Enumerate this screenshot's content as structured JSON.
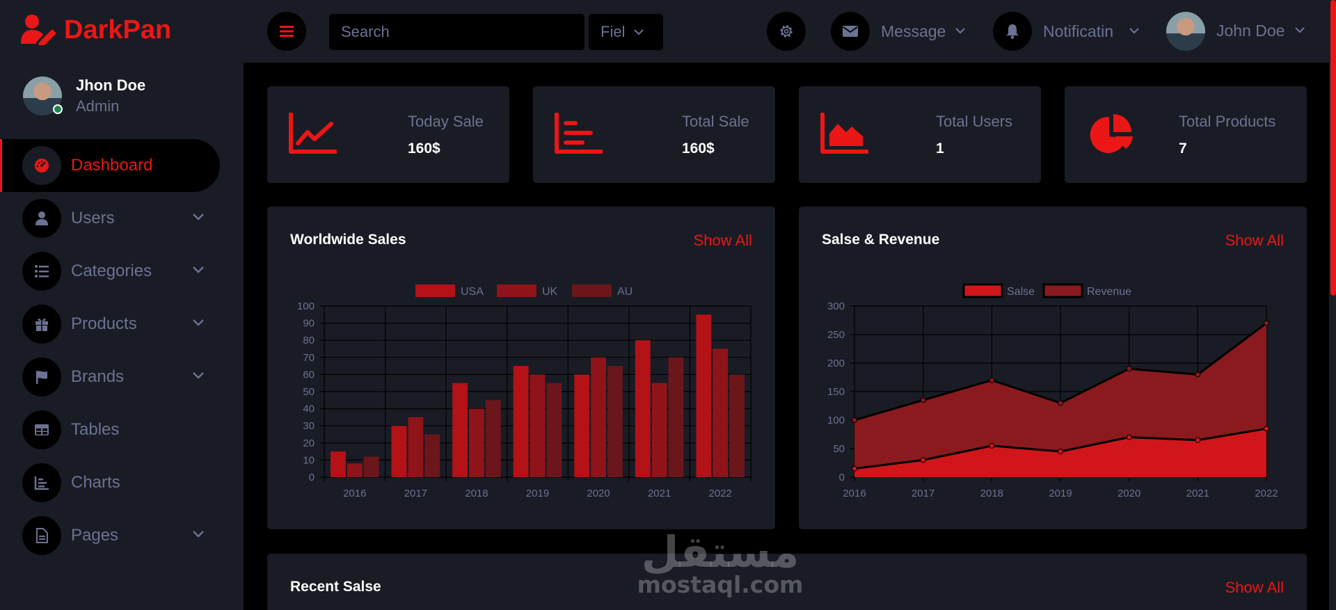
{
  "brand": {
    "name": "DarkPan",
    "icon": "user-edit-icon",
    "color": "#eb1616"
  },
  "sidebar": {
    "profile": {
      "name": "Jhon Doe",
      "role": "Admin",
      "status": "online"
    },
    "items": [
      {
        "label": "Dashboard",
        "icon": "tachometer-icon",
        "active": true,
        "has_submenu": false
      },
      {
        "label": "Users",
        "icon": "user-icon",
        "active": false,
        "has_submenu": true
      },
      {
        "label": "Categories",
        "icon": "list-icon",
        "active": false,
        "has_submenu": true
      },
      {
        "label": "Products",
        "icon": "gift-icon",
        "active": false,
        "has_submenu": true
      },
      {
        "label": "Brands",
        "icon": "flag-icon",
        "active": false,
        "has_submenu": true
      },
      {
        "label": "Tables",
        "icon": "table-icon",
        "active": false,
        "has_submenu": false
      },
      {
        "label": "Charts",
        "icon": "chart-bar-icon",
        "active": false,
        "has_submenu": false
      },
      {
        "label": "Pages",
        "icon": "file-icon",
        "active": false,
        "has_submenu": true
      }
    ]
  },
  "topbar": {
    "search_placeholder": "Search",
    "field_label": "Fiel",
    "message_label": "Message",
    "notification_label": "Notificatin",
    "user_name": "John Doe"
  },
  "stats": [
    {
      "label": "Today Sale",
      "value": "160$",
      "icon": "chart-line-icon"
    },
    {
      "label": "Total Sale",
      "value": "160$",
      "icon": "chart-bar-icon"
    },
    {
      "label": "Total Users",
      "value": "1",
      "icon": "chart-area-icon"
    },
    {
      "label": "Total Products",
      "value": "7",
      "icon": "chart-pie-icon"
    }
  ],
  "cards": {
    "worldwide": {
      "title": "Worldwide Sales",
      "link": "Show All"
    },
    "revenue": {
      "title": "Salse & Revenue",
      "link": "Show All"
    },
    "recent": {
      "title": "Recent Salse",
      "link": "Show All"
    }
  },
  "watermark": {
    "text_ar": "مستقل",
    "text_en": "mostaql.com"
  },
  "chart_data": [
    {
      "type": "bar",
      "categories": [
        "2016",
        "2017",
        "2018",
        "2019",
        "2020",
        "2021",
        "2022"
      ],
      "series": [
        {
          "name": "USA",
          "values": [
            15,
            30,
            55,
            65,
            60,
            80,
            95
          ],
          "color": "#b31217"
        },
        {
          "name": "UK",
          "values": [
            8,
            35,
            40,
            60,
            70,
            55,
            75
          ],
          "color": "#8f1419"
        },
        {
          "name": "AU",
          "values": [
            12,
            25,
            45,
            55,
            65,
            70,
            60
          ],
          "color": "#6b161b"
        }
      ],
      "ylim": [
        0,
        100
      ],
      "yticks": [
        0,
        10,
        20,
        30,
        40,
        50,
        60,
        70,
        80,
        90,
        100
      ],
      "legend": "top",
      "grid": true
    },
    {
      "type": "area",
      "x": [
        "2016",
        "2017",
        "2018",
        "2019",
        "2020",
        "2021",
        "2022"
      ],
      "series": [
        {
          "name": "Salse",
          "values": [
            15,
            30,
            55,
            45,
            70,
            65,
            85
          ],
          "color": "#d0161b"
        },
        {
          "name": "Revenue",
          "values": [
            100,
            135,
            170,
            130,
            190,
            180,
            270
          ],
          "color": "#8a1a1e"
        }
      ],
      "ylim": [
        0,
        300
      ],
      "yticks": [
        0,
        50,
        100,
        150,
        200,
        250,
        300
      ],
      "legend": "top",
      "grid": true
    }
  ]
}
